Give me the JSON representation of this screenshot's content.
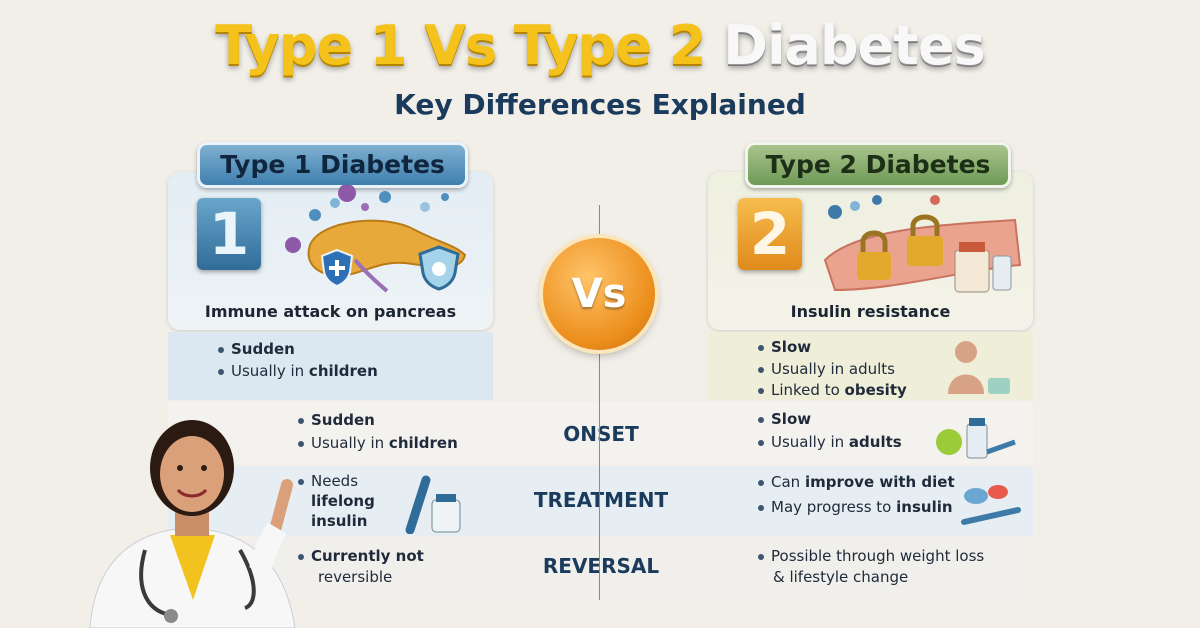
{
  "title": {
    "part1": "Type 1 Vs Type 2",
    "part2": "Diabetes"
  },
  "subtitle": "Key Differences Explained",
  "vs_label": "Vs",
  "type1": {
    "heading": "Type 1 Diabetes",
    "number": "1",
    "caption": "Immune attack on pancreas",
    "summary": [
      {
        "bold": "Sudden",
        "rest": ""
      },
      {
        "plain": "Usually in ",
        "bold": "children"
      }
    ]
  },
  "type2": {
    "heading": "Type 2 Diabetes",
    "number": "2",
    "caption": "Insulin resistance",
    "summary": [
      {
        "bold": "Slow"
      },
      {
        "plain": "Usually in adults"
      },
      {
        "plain": "Linked to ",
        "bold": "obesity"
      }
    ]
  },
  "rows": [
    {
      "label": "ONSET",
      "left": [
        {
          "bold": "Sudden"
        },
        {
          "plain": "Usually in ",
          "bold": "children"
        }
      ],
      "right": [
        {
          "bold": "Slow"
        },
        {
          "plain": "Usually in ",
          "bold": "adults"
        }
      ]
    },
    {
      "label": "TREATMENT",
      "left": [
        {
          "plain": "Needs",
          "bold1": "lifelong",
          "bold2": "insulin"
        }
      ],
      "right": [
        {
          "plain": "Can ",
          "bold": "improve with diet"
        },
        {
          "plain": "May progress to ",
          "bold": "insulin"
        }
      ]
    },
    {
      "label": "REVERSAL",
      "left": [
        {
          "bold": "Currently not",
          "plain": "reversible"
        }
      ],
      "right": [
        {
          "plain": "Possible through weight loss",
          "plain2": "& lifestyle change"
        }
      ]
    }
  ],
  "colors": {
    "type1": "#3f7fae",
    "type2": "#6f9a57",
    "vs": "#ec8f1d",
    "title_yellow": "#f4c21b"
  },
  "icons": [
    "pancreas-icon",
    "shield-icon",
    "padlock-icon",
    "insulin-pen-icon",
    "medicine-bottle-icon",
    "apple-icon",
    "doctor-illustration"
  ]
}
